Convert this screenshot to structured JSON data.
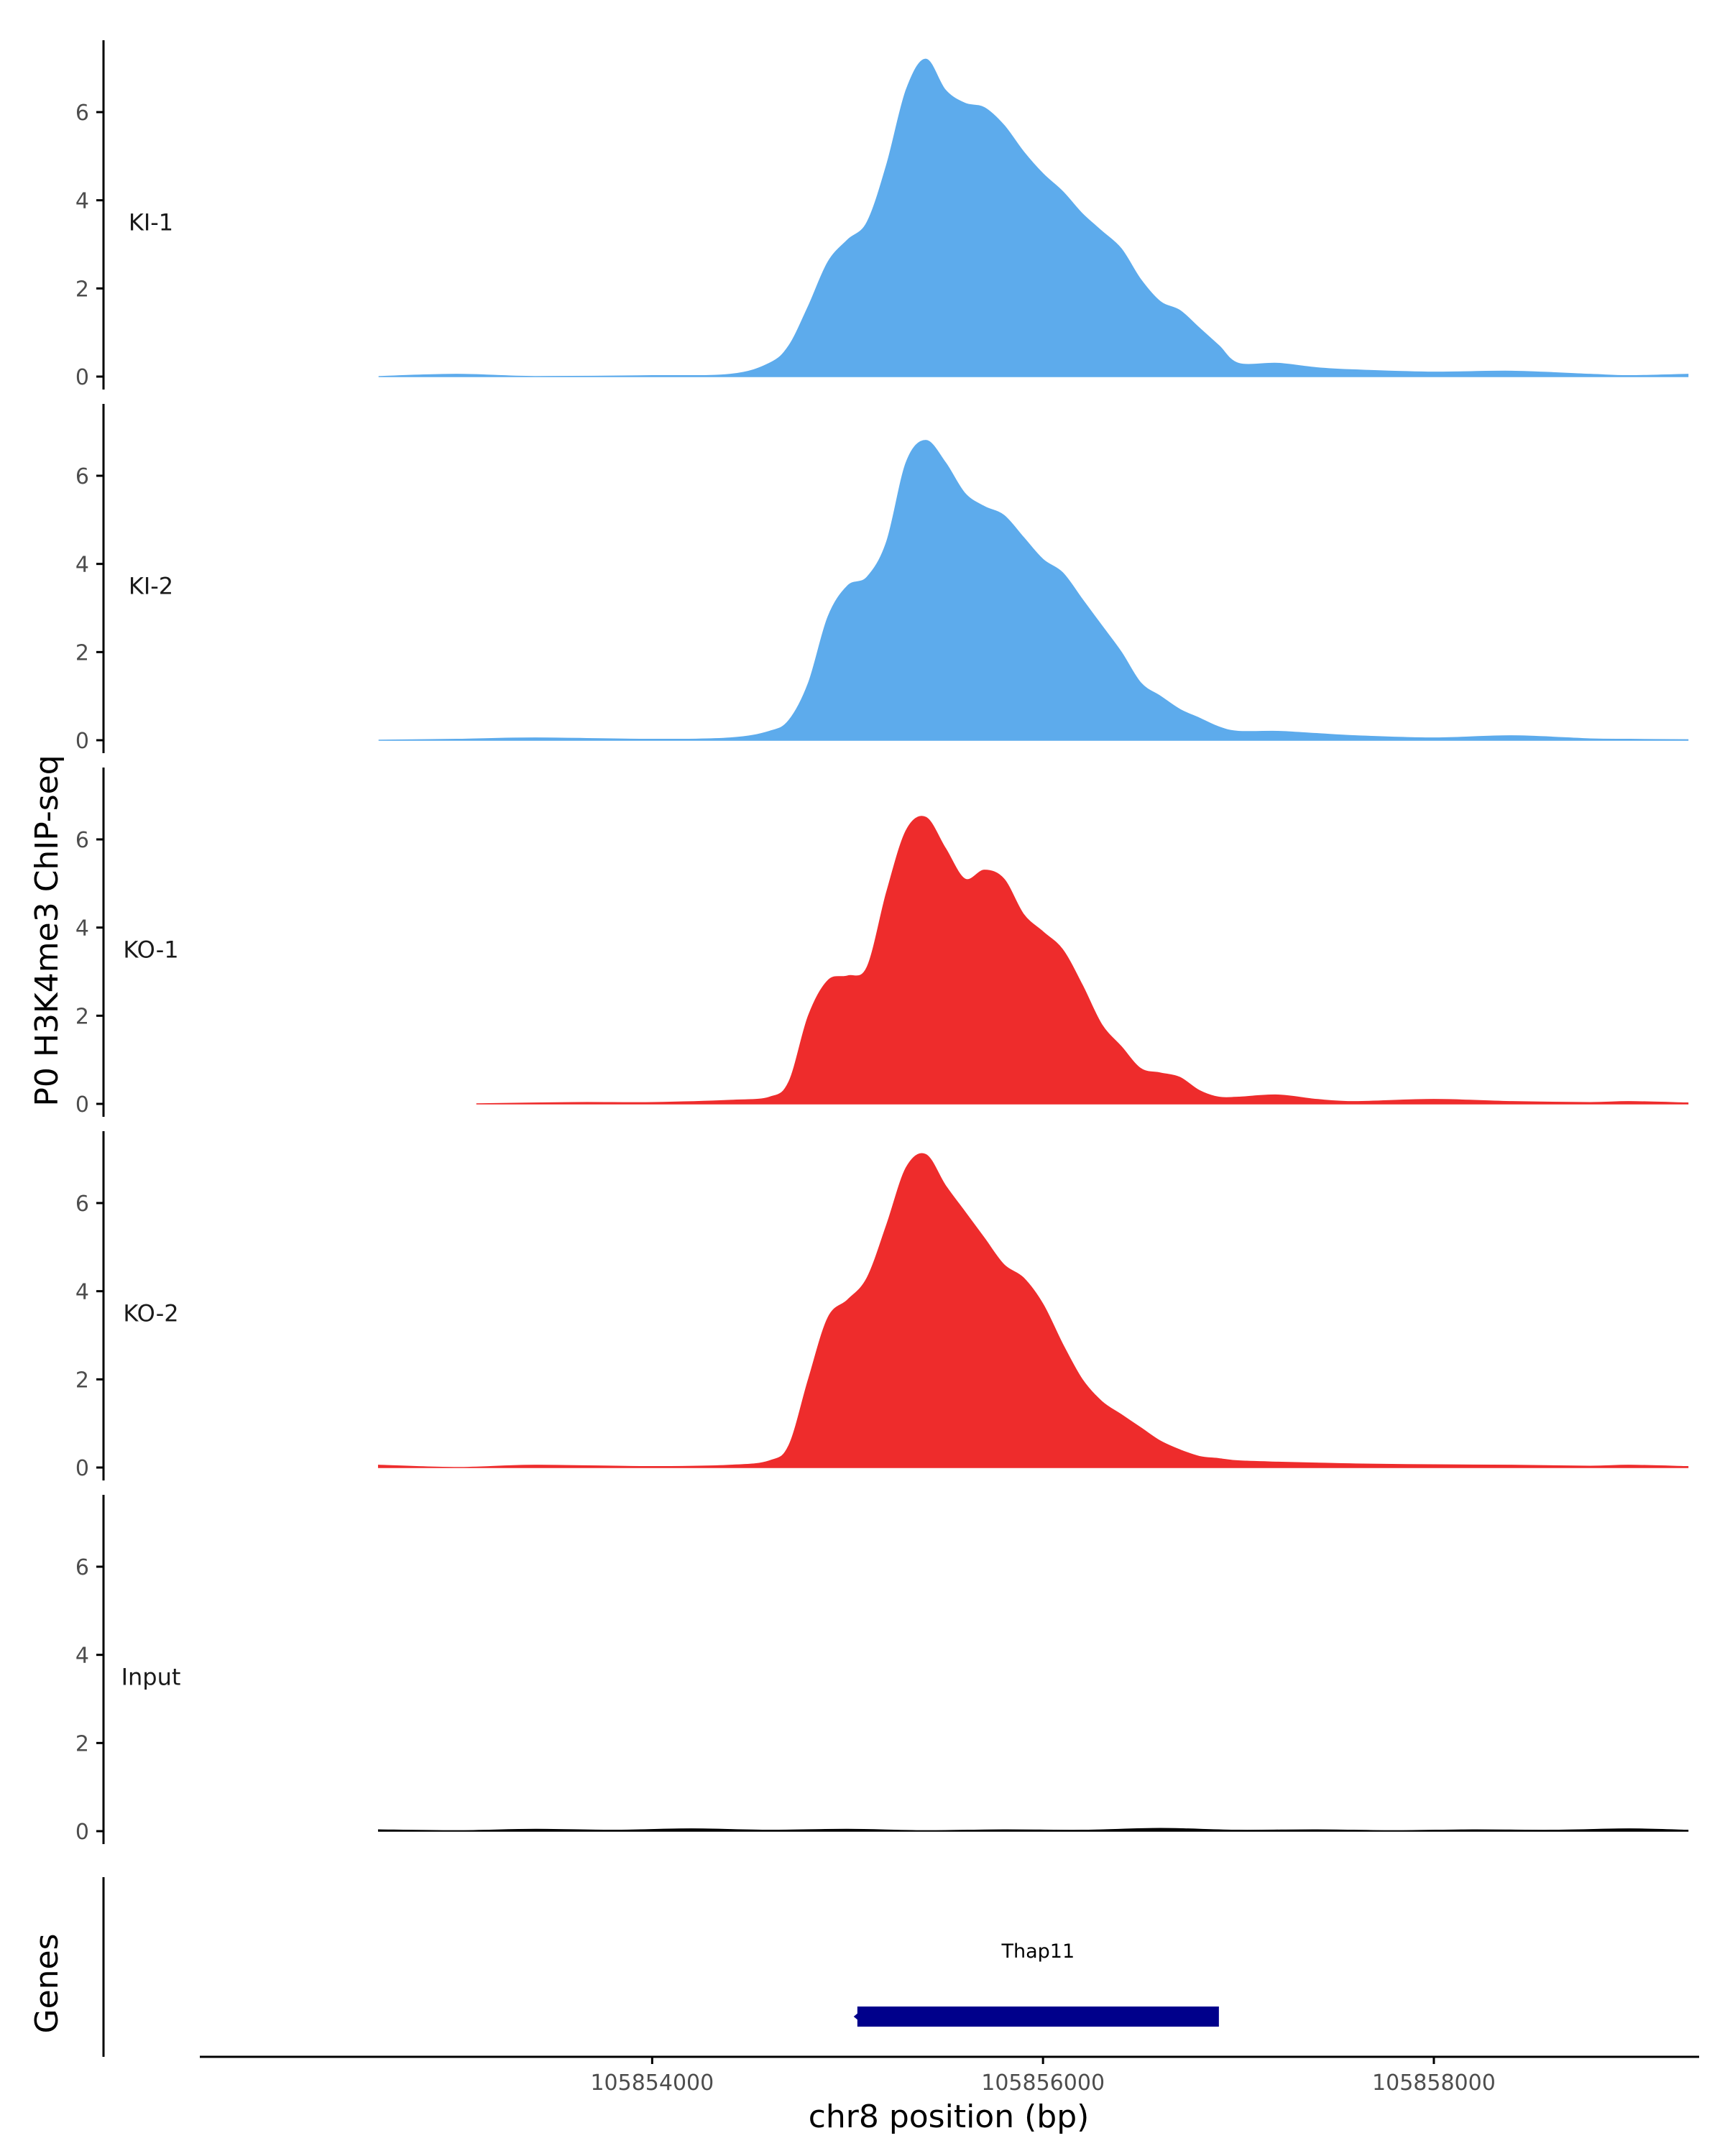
{
  "chart_data": {
    "type": "area",
    "ylabel": "P0 H3K4me3 ChIP-seq",
    "xlabel": "chr8 position (bp)",
    "genes_label": "Genes",
    "ylim": [
      0,
      7.5
    ],
    "yticks": [
      0,
      2,
      4,
      6
    ],
    "xlim": [
      105851700,
      105859350
    ],
    "xticks": [
      105854000,
      105856000,
      105858000
    ],
    "xtick_labels": [
      "105854000",
      "105856000",
      "105858000"
    ],
    "colors": {
      "KI": "#5dabec",
      "KO": "#ee2c2c",
      "Input": "#000000",
      "gene": "#00008b",
      "axis": "#000000"
    },
    "tracks": [
      {
        "name": "KI-1",
        "color": "#5dabec",
        "x": [
          105852600,
          105853000,
          105853400,
          105854000,
          105854400,
          105854600,
          105854700,
          105854800,
          105854900,
          105855000,
          105855100,
          105855200,
          105855300,
          105855400,
          105855500,
          105855600,
          105855700,
          105855800,
          105855900,
          105856000,
          105856100,
          105856200,
          105856300,
          105856400,
          105856500,
          105856600,
          105856700,
          105856800,
          105856900,
          105857000,
          105857200,
          105857400,
          105857600,
          105858000,
          105858400,
          105858800,
          105859000,
          105859300
        ],
        "values": [
          0,
          0.05,
          0,
          0.02,
          0.05,
          0.3,
          0.7,
          1.6,
          2.6,
          3.1,
          3.5,
          4.8,
          6.5,
          7.2,
          6.5,
          6.2,
          6.1,
          5.7,
          5.1,
          4.6,
          4.2,
          3.7,
          3.3,
          2.9,
          2.2,
          1.7,
          1.5,
          1.1,
          0.7,
          0.3,
          0.3,
          0.2,
          0.15,
          0.1,
          0.12,
          0.05,
          0.02,
          0.05
        ]
      },
      {
        "name": "KI-2",
        "color": "#5dabec",
        "x": [
          105852600,
          105853000,
          105853400,
          105854000,
          105854400,
          105854600,
          105854700,
          105854800,
          105854900,
          105855000,
          105855100,
          105855200,
          105855300,
          105855400,
          105855500,
          105855600,
          105855700,
          105855800,
          105855900,
          105856000,
          105856100,
          105856200,
          105856300,
          105856400,
          105856500,
          105856600,
          105856700,
          105856800,
          105856900,
          105857000,
          105857200,
          105857400,
          105857600,
          105858000,
          105858400,
          105858800,
          105859000,
          105859300
        ],
        "values": [
          0,
          0.02,
          0.05,
          0.02,
          0.05,
          0.2,
          0.45,
          1.3,
          2.8,
          3.5,
          3.7,
          4.5,
          6.3,
          6.8,
          6.3,
          5.6,
          5.3,
          5.1,
          4.6,
          4.1,
          3.8,
          3.2,
          2.6,
          2.0,
          1.3,
          1.0,
          0.7,
          0.5,
          0.3,
          0.2,
          0.2,
          0.15,
          0.1,
          0.05,
          0.1,
          0.03,
          0.02,
          0.01
        ]
      },
      {
        "name": "KO-1",
        "color": "#ee2c2c",
        "x": [
          105853100,
          105853600,
          105854000,
          105854400,
          105854600,
          105854700,
          105854800,
          105854900,
          105855000,
          105855100,
          105855200,
          105855300,
          105855400,
          105855500,
          105855600,
          105855700,
          105855800,
          105855900,
          105856000,
          105856100,
          105856200,
          105856300,
          105856400,
          105856500,
          105856600,
          105856700,
          105856800,
          105856900,
          105857000,
          105857200,
          105857400,
          105857600,
          105858000,
          105858400,
          105858800,
          105859000,
          105859300
        ],
        "values": [
          0,
          0.03,
          0.03,
          0.08,
          0.15,
          0.5,
          2.0,
          2.8,
          2.9,
          3.1,
          4.8,
          6.2,
          6.5,
          5.8,
          5.1,
          5.3,
          5.1,
          4.3,
          3.9,
          3.5,
          2.7,
          1.8,
          1.3,
          0.8,
          0.7,
          0.6,
          0.3,
          0.15,
          0.15,
          0.2,
          0.1,
          0.05,
          0.1,
          0.05,
          0.03,
          0.05,
          0.02
        ]
      },
      {
        "name": "KO-2",
        "color": "#ee2c2c",
        "x": [
          105852600,
          105853000,
          105853400,
          105854000,
          105854400,
          105854600,
          105854700,
          105854800,
          105854900,
          105855000,
          105855100,
          105855200,
          105855300,
          105855400,
          105855500,
          105855600,
          105855700,
          105855800,
          105855900,
          105856000,
          105856100,
          105856200,
          105856300,
          105856400,
          105856500,
          105856600,
          105856700,
          105856800,
          105856900,
          105857000,
          105857200,
          105857400,
          105857600,
          105858000,
          105858400,
          105858800,
          105859000,
          105859300
        ],
        "values": [
          0.05,
          0,
          0.05,
          0.02,
          0.05,
          0.15,
          0.5,
          2.0,
          3.4,
          3.8,
          4.3,
          5.5,
          6.8,
          7.1,
          6.4,
          5.8,
          5.2,
          4.6,
          4.3,
          3.7,
          2.8,
          2.0,
          1.5,
          1.2,
          0.9,
          0.6,
          0.4,
          0.25,
          0.2,
          0.15,
          0.12,
          0.1,
          0.08,
          0.06,
          0.05,
          0.03,
          0.05,
          0.02
        ]
      },
      {
        "name": "Input",
        "color": "#000000",
        "x": [
          105852600,
          105853000,
          105853400,
          105853800,
          105854200,
          105854600,
          105855000,
          105855400,
          105855800,
          105856200,
          105856600,
          105857000,
          105857400,
          105857800,
          105858200,
          105858600,
          105859000,
          105859300
        ],
        "values": [
          0.03,
          0.01,
          0.04,
          0.02,
          0.05,
          0.02,
          0.04,
          0.01,
          0.03,
          0.02,
          0.06,
          0.02,
          0.03,
          0.01,
          0.03,
          0.02,
          0.05,
          0.02
        ]
      }
    ],
    "genes": [
      {
        "name": "Thap11",
        "start": 105855050,
        "end": 105856900,
        "strand": "-"
      }
    ]
  }
}
